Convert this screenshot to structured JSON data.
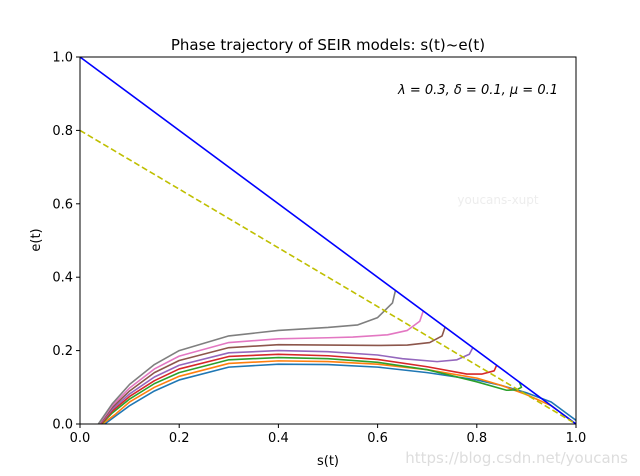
{
  "chart_data": {
    "type": "line",
    "title": "Phase trajectory of SEIR models: s(t)~e(t)",
    "xlabel": "s(t)",
    "ylabel": "e(t)",
    "xlim": [
      0.0,
      1.0
    ],
    "ylim": [
      0.0,
      1.0
    ],
    "xticks": [
      0.0,
      0.2,
      0.4,
      0.6,
      0.8,
      1.0
    ],
    "yticks": [
      0.0,
      0.2,
      0.4,
      0.6,
      0.8,
      1.0
    ],
    "xtick_labels": [
      "0.0",
      "0.2",
      "0.4",
      "0.6",
      "0.8",
      "1.0"
    ],
    "ytick_labels": [
      "0.0",
      "0.2",
      "0.4",
      "0.6",
      "0.8",
      "1.0"
    ],
    "grid": false,
    "annotation": "λ = 0.3, δ = 0.1, μ = 0.1",
    "watermarks": [
      "youcans-xupt",
      "https://blog.csdn.net/youcans"
    ],
    "reference_lines": [
      {
        "style": "solid",
        "color": "#0000ff",
        "x": [
          0.0,
          1.0
        ],
        "y": [
          1.0,
          0.0
        ]
      },
      {
        "style": "dashed",
        "color": "#bfbf00",
        "x": [
          0.0,
          1.0
        ],
        "y": [
          0.8,
          0.0
        ]
      }
    ],
    "series": [
      {
        "color": "#1f77b4",
        "x": [
          1.0,
          0.98,
          0.95,
          0.9,
          0.85,
          0.8,
          0.7,
          0.6,
          0.5,
          0.4,
          0.3,
          0.2,
          0.15,
          0.1,
          0.07,
          0.05
        ],
        "y": [
          0.01,
          0.03,
          0.06,
          0.085,
          0.105,
          0.12,
          0.14,
          0.155,
          0.162,
          0.163,
          0.155,
          0.12,
          0.09,
          0.05,
          0.02,
          0.0
        ]
      },
      {
        "color": "#ff7f0e",
        "x": [
          0.985,
          0.97,
          0.95,
          0.9,
          0.85,
          0.8,
          0.7,
          0.6,
          0.5,
          0.4,
          0.3,
          0.2,
          0.15,
          0.1,
          0.07,
          0.045
        ],
        "y": [
          0.015,
          0.03,
          0.05,
          0.08,
          0.105,
          0.125,
          0.148,
          0.163,
          0.17,
          0.172,
          0.165,
          0.13,
          0.1,
          0.06,
          0.025,
          0.0
        ]
      },
      {
        "color": "#2ca02c",
        "x": [
          0.886,
          0.89,
          0.88,
          0.86,
          0.8,
          0.7,
          0.6,
          0.5,
          0.4,
          0.3,
          0.2,
          0.15,
          0.1,
          0.065,
          0.043
        ],
        "y": [
          0.114,
          0.1,
          0.093,
          0.092,
          0.115,
          0.148,
          0.168,
          0.178,
          0.181,
          0.175,
          0.14,
          0.11,
          0.068,
          0.03,
          0.0
        ]
      },
      {
        "color": "#d62728",
        "x": [
          0.84,
          0.835,
          0.81,
          0.78,
          0.7,
          0.6,
          0.5,
          0.4,
          0.3,
          0.2,
          0.15,
          0.1,
          0.065,
          0.042
        ],
        "y": [
          0.16,
          0.145,
          0.136,
          0.136,
          0.156,
          0.176,
          0.186,
          0.19,
          0.184,
          0.15,
          0.118,
          0.075,
          0.035,
          0.0
        ]
      },
      {
        "color": "#9467bd",
        "x": [
          0.792,
          0.785,
          0.76,
          0.72,
          0.65,
          0.6,
          0.5,
          0.4,
          0.3,
          0.2,
          0.15,
          0.1,
          0.065,
          0.04
        ],
        "y": [
          0.208,
          0.19,
          0.175,
          0.17,
          0.178,
          0.188,
          0.197,
          0.2,
          0.194,
          0.16,
          0.128,
          0.082,
          0.04,
          0.0
        ]
      },
      {
        "color": "#8c564b",
        "x": [
          0.736,
          0.73,
          0.705,
          0.66,
          0.6,
          0.5,
          0.4,
          0.3,
          0.2,
          0.15,
          0.1,
          0.065,
          0.039
        ],
        "y": [
          0.264,
          0.24,
          0.222,
          0.215,
          0.214,
          0.215,
          0.216,
          0.208,
          0.173,
          0.14,
          0.09,
          0.045,
          0.0
        ]
      },
      {
        "color": "#e377c2",
        "x": [
          0.692,
          0.685,
          0.66,
          0.62,
          0.55,
          0.5,
          0.4,
          0.3,
          0.2,
          0.15,
          0.1,
          0.065,
          0.038
        ],
        "y": [
          0.308,
          0.28,
          0.255,
          0.243,
          0.237,
          0.235,
          0.232,
          0.222,
          0.185,
          0.15,
          0.098,
          0.05,
          0.0
        ]
      },
      {
        "color": "#7f7f7f",
        "x": [
          0.636,
          0.63,
          0.6,
          0.56,
          0.5,
          0.4,
          0.3,
          0.2,
          0.15,
          0.1,
          0.065,
          0.037
        ],
        "y": [
          0.364,
          0.33,
          0.29,
          0.27,
          0.263,
          0.255,
          0.24,
          0.2,
          0.162,
          0.108,
          0.055,
          0.0
        ]
      }
    ]
  }
}
